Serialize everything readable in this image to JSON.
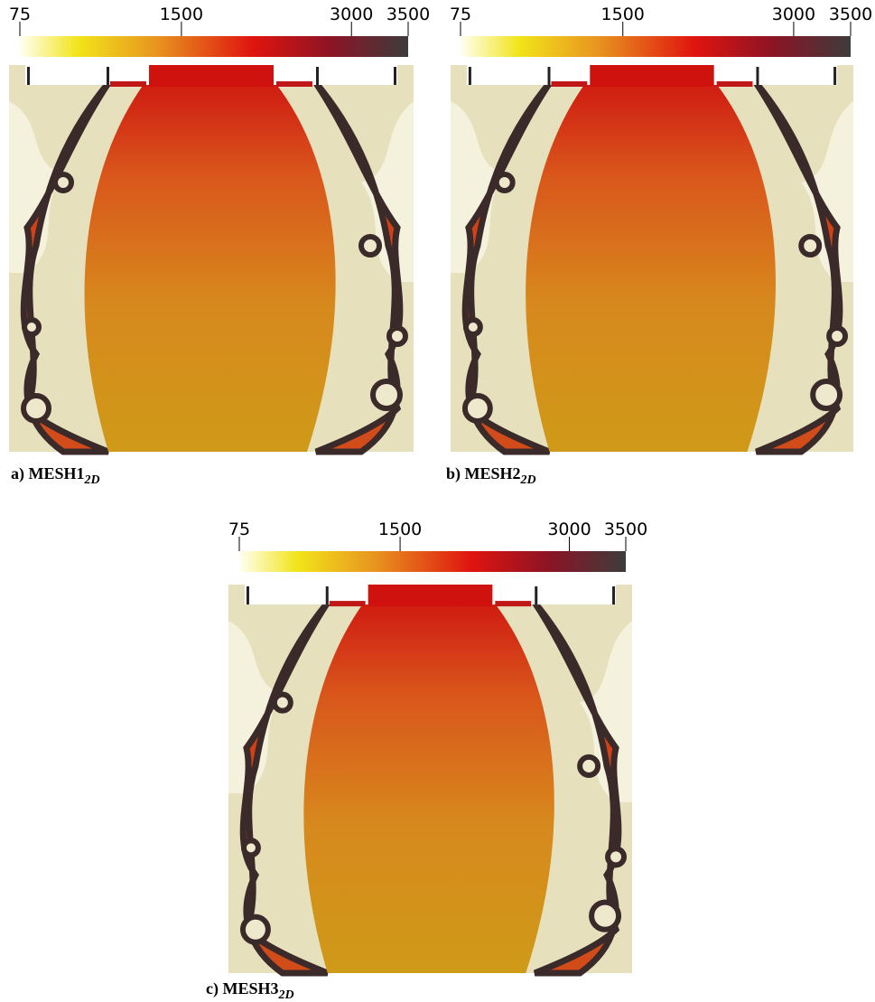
{
  "panels": [
    {
      "caption": {
        "label": "a) MESH1",
        "subscript": "2D"
      },
      "colorbar": {
        "range": [
          75,
          3500
        ],
        "ticks": [
          75,
          1500,
          3000,
          3500
        ]
      }
    },
    {
      "caption": {
        "label": "b) MESH2",
        "subscript": "2D"
      },
      "colorbar": {
        "range": [
          75,
          3500
        ],
        "ticks": [
          75,
          1500,
          3000,
          3500
        ]
      }
    },
    {
      "caption": {
        "label": "c) MESH3",
        "subscript": "2D"
      },
      "colorbar": {
        "range": [
          75,
          3500
        ],
        "ticks": [
          75,
          1500,
          3000,
          3500
        ]
      }
    }
  ]
}
